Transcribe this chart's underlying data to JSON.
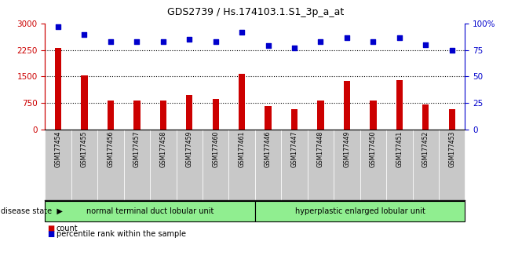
{
  "title": "GDS2739 / Hs.174103.1.S1_3p_a_at",
  "samples": [
    "GSM177454",
    "GSM177455",
    "GSM177456",
    "GSM177457",
    "GSM177458",
    "GSM177459",
    "GSM177460",
    "GSM177461",
    "GSM177446",
    "GSM177447",
    "GSM177448",
    "GSM177449",
    "GSM177450",
    "GSM177451",
    "GSM177452",
    "GSM177453"
  ],
  "counts": [
    2320,
    1530,
    810,
    820,
    820,
    980,
    870,
    1580,
    650,
    560,
    820,
    1370,
    820,
    1390,
    700,
    580
  ],
  "percentiles": [
    97,
    90,
    83,
    83,
    83,
    85,
    83,
    92,
    79,
    77,
    83,
    87,
    83,
    87,
    80,
    75
  ],
  "group1_label": "normal terminal duct lobular unit",
  "group2_label": "hyperplastic enlarged lobular unit",
  "group1_count": 8,
  "group2_count": 8,
  "bar_color": "#cc0000",
  "dot_color": "#0000cc",
  "left_axis_color": "#cc0000",
  "right_axis_color": "#0000cc",
  "ylim_left": [
    0,
    3000
  ],
  "ylim_right": [
    0,
    100
  ],
  "yticks_left": [
    0,
    750,
    1500,
    2250,
    3000
  ],
  "yticks_right": [
    0,
    25,
    50,
    75,
    100
  ],
  "grid_vals": [
    750,
    1500,
    2250
  ],
  "group1_color": "#90ee90",
  "group2_color": "#90ee90",
  "bar_width": 0.25,
  "legend_count_label": "count",
  "legend_pct_label": "percentile rank within the sample",
  "disease_state_label": "disease state",
  "tick_bg_color": "#c8c8c8",
  "tick_sep_color": "#ffffff"
}
